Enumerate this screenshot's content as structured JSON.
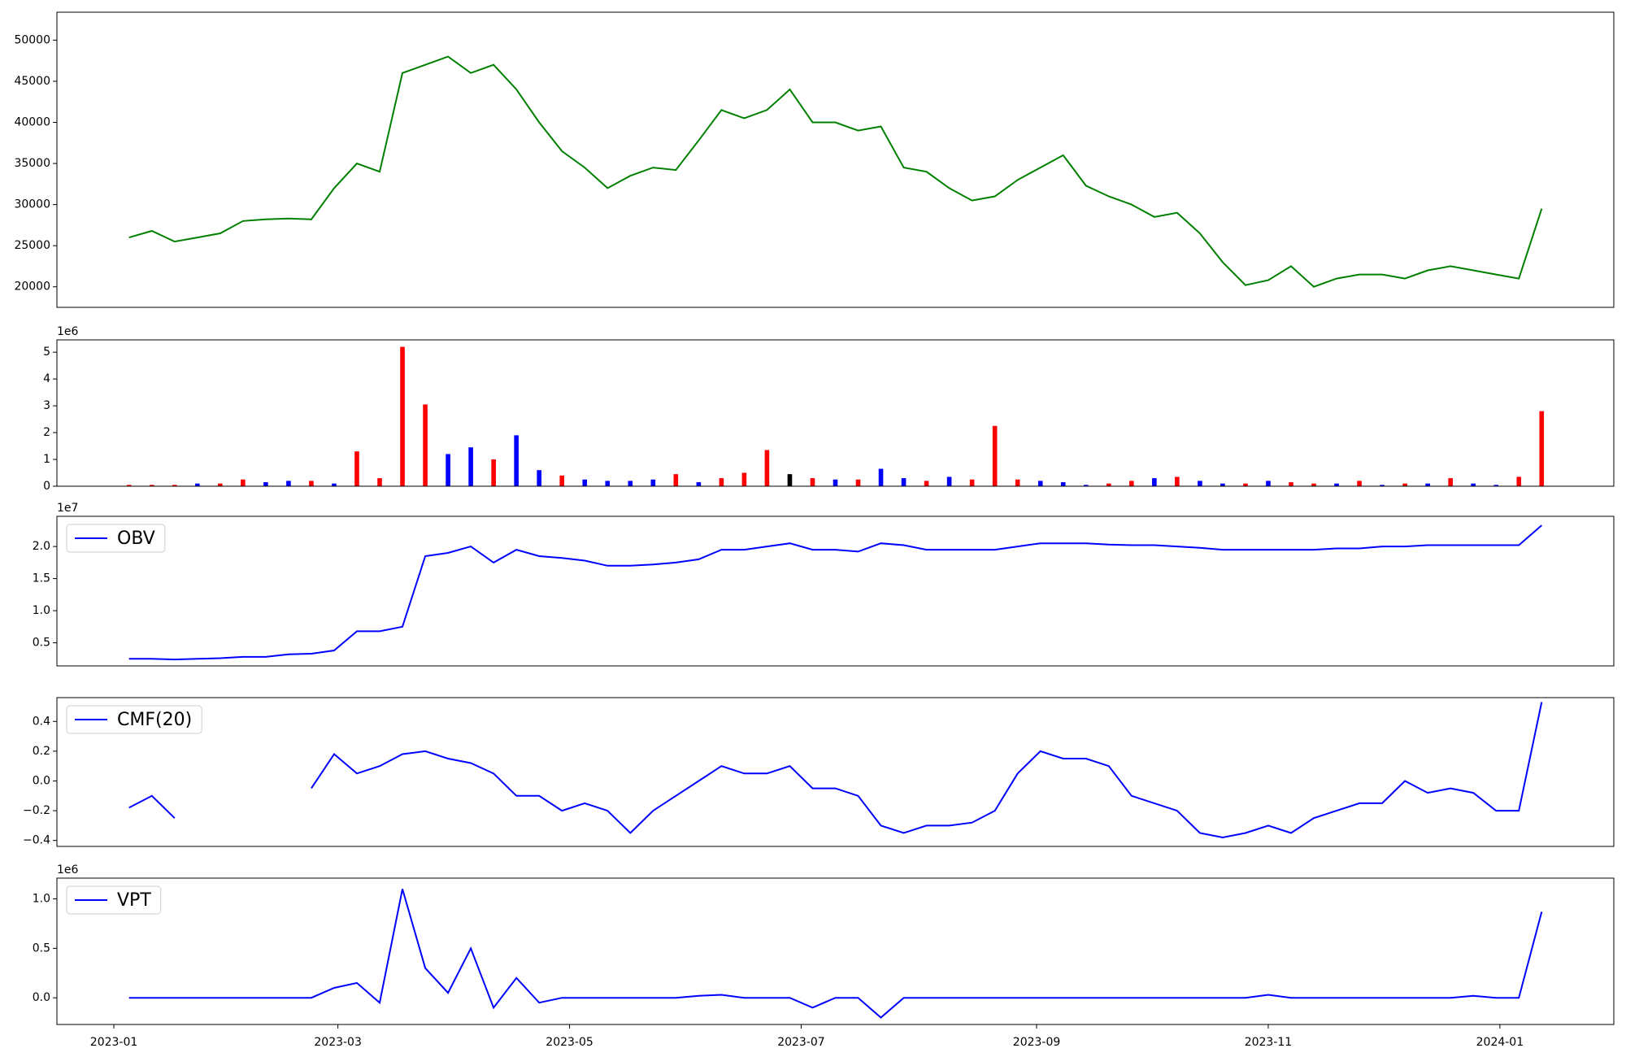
{
  "chart_data": [
    {
      "type": "line",
      "x": [
        4,
        10,
        16,
        22,
        28,
        34,
        40,
        46,
        52,
        58,
        64,
        70,
        76,
        82,
        88,
        94,
        100,
        106,
        112,
        118,
        124,
        130,
        136,
        142,
        148,
        154,
        160,
        166,
        172,
        178,
        184,
        190,
        196,
        202,
        208,
        214,
        220,
        226,
        232,
        238,
        244,
        250,
        256,
        262,
        268,
        274,
        280,
        286,
        292,
        298,
        304,
        310,
        316,
        322,
        328,
        334,
        340,
        346,
        352,
        358,
        364,
        370,
        376
      ],
      "series": [
        {
          "color": "green",
          "values": [
            26000,
            26800,
            25500,
            26000,
            26500,
            28000,
            28200,
            28300,
            28200,
            32000,
            35000,
            34000,
            46000,
            47000,
            48000,
            46000,
            47000,
            44000,
            40000,
            36500,
            34500,
            32000,
            33500,
            34500,
            34200,
            37800,
            41500,
            40500,
            41500,
            44000,
            40000,
            40000,
            39000,
            39500,
            34500,
            34000,
            32000,
            30500,
            31000,
            33000,
            34500,
            36000,
            32300,
            31000,
            30000,
            28500,
            29000,
            26500,
            23000,
            20200,
            20800,
            22500,
            20000,
            21000,
            21500,
            21500,
            21000,
            22000,
            22500,
            22000,
            21500,
            21000,
            29500
          ]
        }
      ],
      "xlim": [
        -15,
        395
      ],
      "ylim": [
        17500,
        53400
      ],
      "yticks": [
        20000,
        25000,
        30000,
        35000,
        40000,
        45000,
        50000
      ]
    },
    {
      "type": "bar",
      "offset_label": "1e6",
      "x": [
        4,
        10,
        16,
        22,
        28,
        34,
        40,
        46,
        52,
        58,
        64,
        70,
        76,
        82,
        88,
        94,
        100,
        106,
        112,
        118,
        124,
        130,
        136,
        142,
        148,
        154,
        160,
        166,
        172,
        178,
        184,
        190,
        196,
        202,
        208,
        214,
        220,
        226,
        232,
        238,
        244,
        250,
        256,
        262,
        268,
        274,
        280,
        286,
        292,
        298,
        304,
        310,
        316,
        322,
        328,
        334,
        340,
        346,
        352,
        358,
        364,
        370,
        376
      ],
      "values": [
        0.05,
        0.05,
        0.05,
        0.1,
        0.1,
        0.25,
        0.15,
        0.2,
        0.2,
        0.1,
        1.3,
        0.3,
        5.2,
        3.05,
        1.2,
        1.45,
        1.0,
        1.9,
        0.6,
        0.4,
        0.25,
        0.2,
        0.2,
        0.25,
        0.45,
        0.15,
        0.3,
        0.5,
        1.35,
        0.45,
        0.3,
        0.25,
        0.25,
        0.65,
        0.3,
        0.2,
        0.35,
        0.25,
        2.25,
        0.25,
        0.2,
        0.15,
        0.05,
        0.1,
        0.2,
        0.3,
        0.35,
        0.2,
        0.1,
        0.1,
        0.2,
        0.15,
        0.1,
        0.1,
        0.2,
        0.05,
        0.1,
        0.1,
        0.3,
        0.1,
        0.05,
        0.35,
        2.8
      ],
      "colors": [
        "red",
        "red",
        "red",
        "blue",
        "red",
        "red",
        "blue",
        "blue",
        "red",
        "blue",
        "red",
        "red",
        "red",
        "red",
        "blue",
        "blue",
        "red",
        "blue",
        "blue",
        "red",
        "blue",
        "blue",
        "blue",
        "blue",
        "red",
        "blue",
        "red",
        "red",
        "red",
        "black",
        "red",
        "blue",
        "red",
        "blue",
        "blue",
        "red",
        "blue",
        "red",
        "red",
        "red",
        "blue",
        "blue",
        "blue",
        "red",
        "red",
        "blue",
        "red",
        "blue",
        "blue",
        "red",
        "blue",
        "red",
        "red",
        "blue",
        "red",
        "blue",
        "red",
        "blue",
        "red",
        "blue",
        "blue",
        "red",
        "red"
      ],
      "xlim": [
        -15,
        395
      ],
      "ylim": [
        0,
        5.46
      ],
      "yticks": [
        0,
        1,
        2,
        3,
        4,
        5
      ]
    },
    {
      "type": "line",
      "offset_label": "1e7",
      "x": [
        4,
        10,
        16,
        22,
        28,
        34,
        40,
        46,
        52,
        58,
        64,
        70,
        76,
        82,
        88,
        94,
        100,
        106,
        112,
        118,
        124,
        130,
        136,
        142,
        148,
        154,
        160,
        166,
        172,
        178,
        184,
        190,
        196,
        202,
        208,
        214,
        220,
        226,
        232,
        238,
        244,
        250,
        256,
        262,
        268,
        274,
        280,
        286,
        292,
        298,
        304,
        310,
        316,
        322,
        328,
        334,
        340,
        346,
        352,
        358,
        364,
        370,
        376
      ],
      "series": [
        {
          "name": "OBV",
          "color": "blue",
          "values": [
            0.25,
            0.25,
            0.24,
            0.25,
            0.26,
            0.28,
            0.28,
            0.32,
            0.33,
            0.38,
            0.68,
            0.68,
            0.75,
            1.85,
            1.9,
            2.0,
            1.75,
            1.95,
            1.85,
            1.82,
            1.78,
            1.7,
            1.7,
            1.72,
            1.75,
            1.8,
            1.95,
            1.95,
            2.0,
            2.05,
            1.95,
            1.95,
            1.92,
            2.05,
            2.02,
            1.95,
            1.95,
            1.95,
            1.95,
            2.0,
            2.05,
            2.05,
            2.05,
            2.03,
            2.02,
            2.02,
            2.0,
            1.98,
            1.95,
            1.95,
            1.95,
            1.95,
            1.95,
            1.97,
            1.97,
            2.0,
            2.0,
            2.02,
            2.02,
            2.02,
            2.02,
            2.02,
            2.33
          ]
        }
      ],
      "xlim": [
        -15,
        395
      ],
      "ylim": [
        0.14,
        2.47
      ],
      "yticks": [
        0.5,
        {
          "value": 1,
          "label": "1.0"
        },
        1.5,
        {
          "value": 2,
          "label": "2.0"
        }
      ],
      "legend": "upper left"
    },
    {
      "type": "line",
      "x": [
        4,
        10,
        16,
        22,
        28,
        34,
        40,
        46,
        52,
        58,
        64,
        70,
        76,
        82,
        88,
        94,
        100,
        106,
        112,
        118,
        124,
        130,
        136,
        142,
        148,
        154,
        160,
        166,
        172,
        178,
        184,
        190,
        196,
        202,
        208,
        214,
        220,
        226,
        232,
        238,
        244,
        250,
        256,
        262,
        268,
        274,
        280,
        286,
        292,
        298,
        304,
        310,
        316,
        322,
        328,
        334,
        340,
        346,
        352,
        358,
        364,
        370,
        376
      ],
      "series": [
        {
          "name": "CMF(20)",
          "color": "blue",
          "values": [
            -0.18,
            -0.1,
            -0.25,
            null,
            null,
            null,
            null,
            null,
            -0.05,
            0.18,
            0.05,
            0.1,
            0.18,
            0.2,
            0.15,
            0.12,
            0.05,
            -0.1,
            -0.1,
            -0.2,
            -0.15,
            -0.2,
            -0.35,
            -0.2,
            -0.1,
            0.0,
            0.1,
            0.05,
            0.05,
            0.1,
            -0.05,
            -0.05,
            -0.1,
            -0.3,
            -0.35,
            -0.3,
            -0.3,
            -0.28,
            -0.2,
            0.05,
            0.2,
            0.15,
            0.15,
            0.1,
            -0.1,
            -0.15,
            -0.2,
            -0.35,
            -0.38,
            -0.35,
            -0.3,
            -0.35,
            -0.25,
            -0.2,
            -0.15,
            -0.15,
            0.0,
            -0.08,
            -0.05,
            -0.08,
            -0.2,
            -0.2,
            0.53
          ]
        }
      ],
      "xlim": [
        -15,
        395
      ],
      "ylim": [
        -0.44,
        0.56
      ],
      "yticks": [
        {
          "value": -0.4,
          "label": "−0.4"
        },
        {
          "value": -0.2,
          "label": "−0.2"
        },
        {
          "value": 0,
          "label": "0.0"
        },
        0.2,
        0.4
      ],
      "legend": "upper left"
    },
    {
      "type": "line",
      "offset_label": "1e6",
      "x": [
        4,
        10,
        16,
        22,
        28,
        34,
        40,
        46,
        52,
        58,
        64,
        70,
        76,
        82,
        88,
        94,
        100,
        106,
        112,
        118,
        124,
        130,
        136,
        142,
        148,
        154,
        160,
        166,
        172,
        178,
        184,
        190,
        196,
        202,
        208,
        214,
        220,
        226,
        232,
        238,
        244,
        250,
        256,
        262,
        268,
        274,
        280,
        286,
        292,
        298,
        304,
        310,
        316,
        322,
        328,
        334,
        340,
        346,
        352,
        358,
        364,
        370,
        376
      ],
      "series": [
        {
          "name": "VPT",
          "color": "blue",
          "values": [
            0,
            0,
            0,
            0,
            0,
            0,
            0,
            0,
            0,
            0.1,
            0.15,
            -0.05,
            1.1,
            0.3,
            0.05,
            0.5,
            -0.1,
            0.2,
            -0.05,
            0,
            0,
            0,
            0,
            0,
            0,
            0.02,
            0.03,
            0,
            0,
            0,
            -0.1,
            0,
            0,
            -0.2,
            0,
            0,
            0,
            0,
            0,
            0,
            0,
            0,
            0,
            0,
            0,
            0,
            0,
            0,
            0,
            0,
            0.03,
            0,
            0,
            0,
            0,
            0,
            0,
            0,
            0,
            0.02,
            0,
            0,
            0.87
          ]
        }
      ],
      "xlim": [
        -15,
        395
      ],
      "ylim": [
        -0.27,
        1.21
      ],
      "yticks": [
        {
          "value": 0,
          "label": "0.0"
        },
        0.5,
        {
          "value": 1,
          "label": "1.0"
        }
      ],
      "legend": "upper left",
      "xticks": [
        {
          "value": 0,
          "label": "2023-01"
        },
        {
          "value": 59,
          "label": "2023-03"
        },
        {
          "value": 120,
          "label": "2023-05"
        },
        {
          "value": 181,
          "label": "2023-07"
        },
        {
          "value": 243,
          "label": "2023-09"
        },
        {
          "value": 304,
          "label": "2023-11"
        },
        {
          "value": 365,
          "label": "2024-01"
        }
      ]
    }
  ]
}
